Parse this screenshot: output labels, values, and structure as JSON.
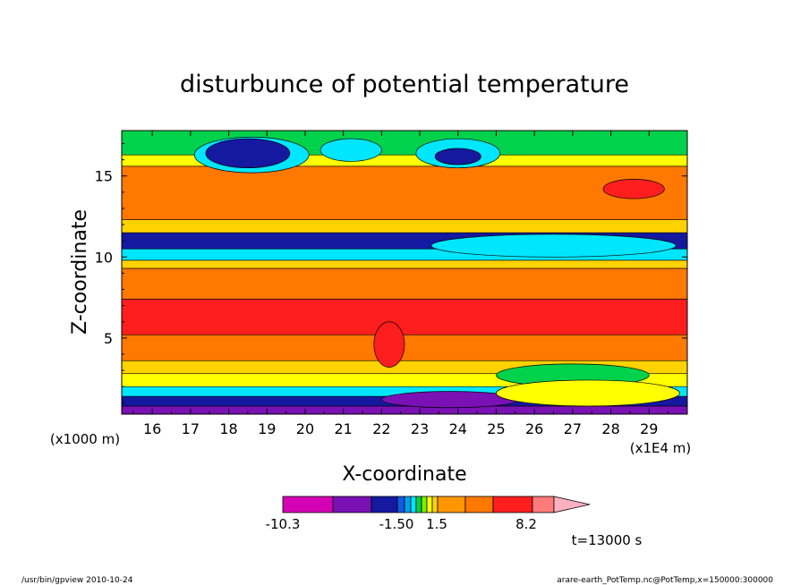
{
  "chart_data": {
    "type": "heatmap",
    "title": "disturbunce of potential temperature",
    "xlabel": "X-coordinate",
    "ylabel": "Z-coordinate",
    "x_unit_label": "(x1E4 m)",
    "y_unit_label": "(x1000 m)",
    "xlim": [
      15.2,
      30.0
    ],
    "ylim": [
      0.3,
      17.8
    ],
    "x_ticks": [
      16,
      17,
      18,
      19,
      20,
      21,
      22,
      23,
      24,
      25,
      26,
      27,
      28,
      29
    ],
    "y_ticks": [
      5,
      10,
      15
    ],
    "colorbar": {
      "labels": [
        "-10.3",
        "-1.50",
        "1.5",
        "8.2"
      ],
      "colors": [
        "#d400b4",
        "#7a11b4",
        "#1419a0",
        "#0f5ae6",
        "#00a0f0",
        "#00e6ff",
        "#00d24b",
        "#7df000",
        "#ffff00",
        "#ffd200",
        "#ff9600",
        "#ff7800",
        "#ff1e1e",
        "#ff7a7a",
        "#ffb0c0"
      ]
    },
    "bands": [
      {
        "z_bottom": 0.3,
        "z_top": 0.8,
        "color": "#7a11b4"
      },
      {
        "z_bottom": 0.8,
        "z_top": 1.4,
        "color": "#1419a0"
      },
      {
        "z_bottom": 1.4,
        "z_top": 2.0,
        "color": "#00e6ff"
      },
      {
        "z_bottom": 2.0,
        "z_top": 2.8,
        "color": "#ffff00"
      },
      {
        "z_bottom": 2.8,
        "z_top": 3.6,
        "color": "#ffd200"
      },
      {
        "z_bottom": 3.6,
        "z_top": 5.2,
        "color": "#ff7800"
      },
      {
        "z_bottom": 5.2,
        "z_top": 7.4,
        "color": "#ff1e1e"
      },
      {
        "z_bottom": 7.4,
        "z_top": 9.3,
        "color": "#ff7800"
      },
      {
        "z_bottom": 9.3,
        "z_top": 9.8,
        "color": "#ffd200"
      },
      {
        "z_bottom": 9.8,
        "z_top": 10.5,
        "color": "#00e6ff"
      },
      {
        "z_bottom": 10.5,
        "z_top": 11.5,
        "color": "#1419a0"
      },
      {
        "z_bottom": 11.5,
        "z_top": 12.3,
        "color": "#ffd200"
      },
      {
        "z_bottom": 12.3,
        "z_top": 15.6,
        "color": "#ff7800"
      },
      {
        "z_bottom": 15.6,
        "z_top": 16.3,
        "color": "#ffff00"
      },
      {
        "z_bottom": 16.3,
        "z_top": 17.8,
        "color": "#00d24b"
      }
    ],
    "features": [
      {
        "kind": "ellipse",
        "cx": 18.6,
        "cz": 16.3,
        "rx": 1.5,
        "rz": 1.1,
        "color": "#00e6ff"
      },
      {
        "kind": "ellipse",
        "cx": 18.5,
        "cz": 16.4,
        "rx": 1.1,
        "rz": 0.9,
        "color": "#1419a0"
      },
      {
        "kind": "ellipse",
        "cx": 21.2,
        "cz": 16.6,
        "rx": 0.8,
        "rz": 0.7,
        "color": "#00e6ff"
      },
      {
        "kind": "ellipse",
        "cx": 24.0,
        "cz": 16.4,
        "rx": 1.1,
        "rz": 0.9,
        "color": "#00e6ff"
      },
      {
        "kind": "ellipse",
        "cx": 24.0,
        "cz": 16.2,
        "rx": 0.6,
        "rz": 0.5,
        "color": "#1419a0"
      },
      {
        "kind": "ellipse",
        "cx": 28.6,
        "cz": 14.2,
        "rx": 0.8,
        "rz": 0.6,
        "color": "#ff1e1e"
      },
      {
        "kind": "ellipse",
        "cx": 26.5,
        "cz": 10.7,
        "rx": 3.2,
        "rz": 0.7,
        "color": "#00e6ff"
      },
      {
        "kind": "ellipse",
        "cx": 27.0,
        "cz": 2.7,
        "rx": 2.0,
        "rz": 0.7,
        "color": "#00d24b"
      },
      {
        "kind": "ellipse",
        "cx": 23.8,
        "cz": 1.2,
        "rx": 1.8,
        "rz": 0.5,
        "color": "#7a11b4"
      },
      {
        "kind": "ellipse",
        "cx": 22.2,
        "cz": 4.6,
        "rx": 0.4,
        "rz": 1.4,
        "color": "#ff1e1e"
      },
      {
        "kind": "ellipse",
        "cx": 27.4,
        "cz": 1.6,
        "rx": 2.4,
        "rz": 0.8,
        "color": "#ffff00"
      }
    ]
  },
  "annotations": {
    "time_label": "t=13000 s",
    "footer_left": "/usr/bin/gpview   2010-10-24",
    "footer_right": "arare-earth_PotTemp.nc@PotTemp,x=150000:300000"
  }
}
